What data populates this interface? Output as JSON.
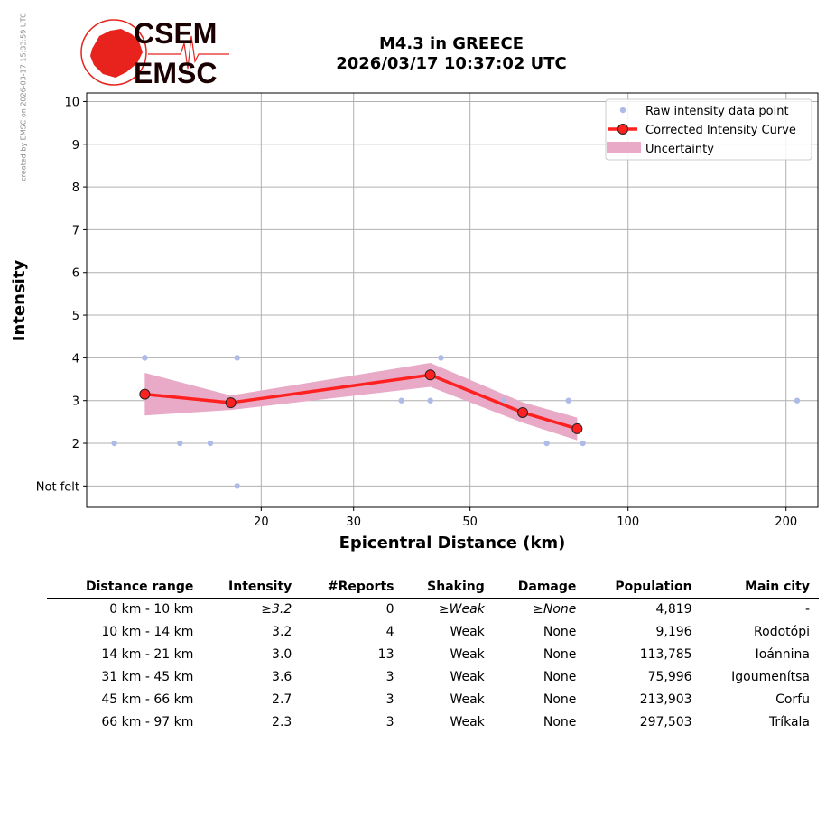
{
  "header": {
    "logo_text_top": "CSEM",
    "logo_text_bottom": "EMSC",
    "title_line1": "M4.3 in GREECE",
    "title_line2": "2026/03/17 10:37:02 UTC",
    "side_note": "created by EMSC on 2026-03-17 15:33:59 UTC"
  },
  "colors": {
    "raw_points": "#aebbe8",
    "curve": "#ff2020",
    "uncertainty": "#e8aac6",
    "grid": "#b0b0b0"
  },
  "chart_data": {
    "type": "scatter",
    "xlabel": "Epicentral Distance (km)",
    "ylabel": "Intensity",
    "x_scale": "log",
    "xlim": [
      9.3,
      230
    ],
    "ylim": [
      0.5,
      10.2
    ],
    "xticks": [
      20,
      30,
      50,
      100,
      200
    ],
    "yticks": [
      1,
      2,
      3,
      4,
      5,
      6,
      7,
      8,
      9,
      10
    ],
    "ytick_labels": [
      "Not felt",
      "2",
      "3",
      "4",
      "5",
      "6",
      "7",
      "8",
      "9",
      "10"
    ],
    "grid": true,
    "legend_position": "top-right",
    "series": [
      {
        "name": "Raw intensity data point",
        "kind": "points",
        "x": [
          10.5,
          12,
          12,
          14,
          16,
          18,
          18,
          37,
          42,
          44,
          58,
          70,
          77,
          82,
          210
        ],
        "y": [
          2,
          4,
          4,
          2,
          2,
          4,
          1,
          3,
          3,
          4,
          3,
          2,
          3,
          2,
          3
        ]
      },
      {
        "name": "Corrected Intensity Curve",
        "kind": "line",
        "x": [
          12,
          17.5,
          42,
          63,
          80
        ],
        "y": [
          3.15,
          2.95,
          3.6,
          2.72,
          2.34
        ]
      },
      {
        "name": "Uncertainty",
        "kind": "band",
        "x": [
          12,
          17.5,
          42,
          63,
          80
        ],
        "upper": [
          3.65,
          3.12,
          3.88,
          2.96,
          2.6
        ],
        "lower": [
          2.65,
          2.78,
          3.32,
          2.48,
          2.07
        ]
      }
    ]
  },
  "table": {
    "headers": [
      "Distance range",
      "Intensity",
      "#Reports",
      "Shaking",
      "Damage",
      "Population",
      "Main city"
    ],
    "rows": [
      [
        "0 km -   10 km",
        "≥3.2",
        "0",
        "≥Weak",
        "≥None",
        "4,819",
        "-"
      ],
      [
        "10 km -   14 km",
        "3.2",
        "4",
        "Weak",
        "None",
        "9,196",
        "Rodotópi"
      ],
      [
        "14 km -   21 km",
        "3.0",
        "13",
        "Weak",
        "None",
        "113,785",
        "Ioánnina"
      ],
      [
        "31 km -   45 km",
        "3.6",
        "3",
        "Weak",
        "None",
        "75,996",
        "Igoumenítsa"
      ],
      [
        "45 km -   66 km",
        "2.7",
        "3",
        "Weak",
        "None",
        "213,903",
        "Corfu"
      ],
      [
        "66 km -   97 km",
        "2.3",
        "3",
        "Weak",
        "None",
        "297,503",
        "Tríkala"
      ]
    ]
  }
}
